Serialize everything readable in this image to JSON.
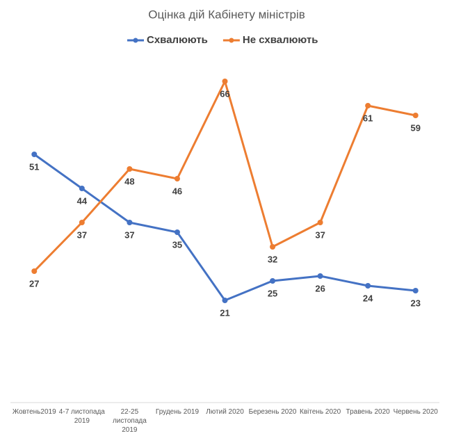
{
  "chart_data": {
    "type": "line",
    "title": "Оцінка дій Кабінету міністрів",
    "categories": [
      "Жовтень2019",
      "4-7 листопада 2019",
      "22-25 листопада 2019",
      "Грудень 2019",
      "Лютий 2020",
      "Березень 2020",
      "Квітень 2020",
      "Травень 2020",
      "Червень 2020"
    ],
    "series": [
      {
        "name": "Схвалюють",
        "color": "#4472c4",
        "values": [
          51,
          44,
          37,
          35,
          21,
          25,
          26,
          24,
          23
        ]
      },
      {
        "name": "Не схвалюють",
        "color": "#ed7d31",
        "values": [
          27,
          37,
          48,
          46,
          66,
          32,
          37,
          61,
          59
        ]
      }
    ],
    "ylim": [
      0,
      70
    ],
    "legend": "top"
  }
}
